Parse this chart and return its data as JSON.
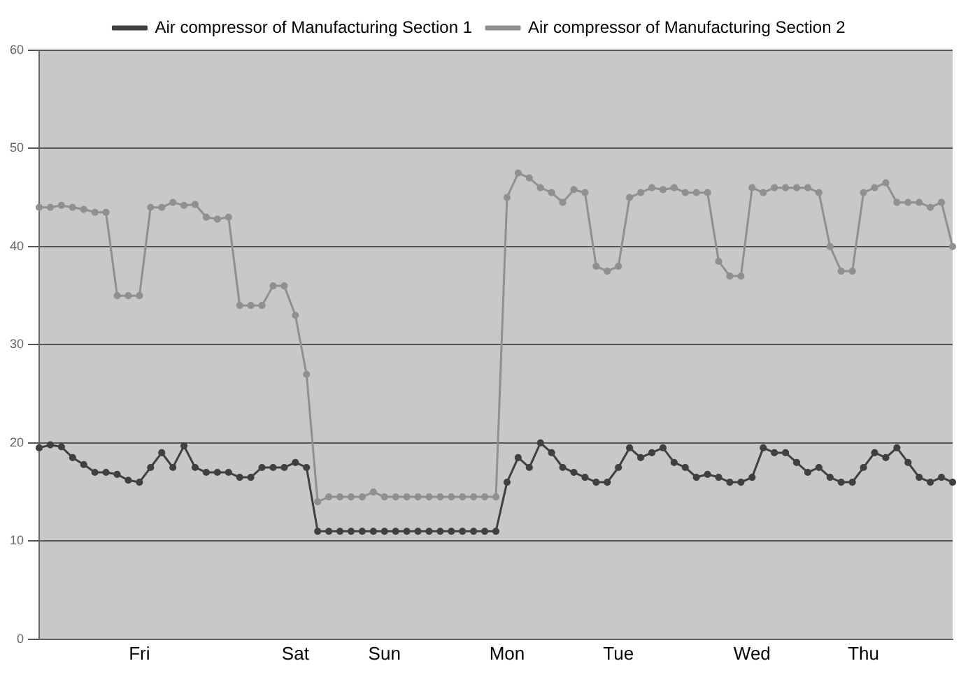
{
  "chart_data": {
    "type": "line",
    "categories": [
      null,
      null,
      null,
      null,
      null,
      null,
      null,
      null,
      null,
      "Fri",
      null,
      null,
      null,
      null,
      null,
      null,
      null,
      null,
      null,
      null,
      null,
      null,
      null,
      "Sat",
      null,
      null,
      null,
      null,
      null,
      null,
      null,
      "Sun",
      null,
      null,
      null,
      null,
      null,
      null,
      null,
      null,
      null,
      null,
      "Mon",
      null,
      null,
      null,
      null,
      null,
      null,
      null,
      null,
      null,
      "Tue",
      null,
      null,
      null,
      null,
      null,
      null,
      null,
      null,
      null,
      null,
      null,
      "Wed",
      null,
      null,
      null,
      null,
      null,
      null,
      null,
      null,
      null,
      "Thu",
      null,
      null,
      null,
      null,
      null,
      null,
      null,
      null
    ],
    "series": [
      {
        "name": "Air compressor of Manufacturing Section 1",
        "color": "#404040",
        "values": [
          19.5,
          19.8,
          19.6,
          18.5,
          17.8,
          17,
          17,
          16.8,
          16.2,
          16,
          17.5,
          19,
          17.5,
          19.7,
          17.5,
          17,
          17,
          17,
          16.5,
          16.5,
          17.5,
          17.5,
          17.5,
          18,
          17.5,
          11,
          11,
          11,
          11,
          11,
          11,
          11,
          11,
          11,
          11,
          11,
          11,
          11,
          11,
          11,
          11,
          11,
          16,
          18.5,
          17.5,
          20,
          19,
          17.5,
          17,
          16.5,
          16,
          16,
          17.5,
          19.5,
          18.5,
          19,
          19.5,
          18,
          17.5,
          16.5,
          16.8,
          16.5,
          16,
          16,
          16.5,
          19.5,
          19,
          19,
          18,
          17,
          17.5,
          16.5,
          16,
          16,
          17.5,
          19,
          18.5,
          19.5,
          18,
          16.5,
          16,
          16.5,
          16
        ]
      },
      {
        "name": "Air compressor of Manufacturing Section 2",
        "color": "#909090",
        "values": [
          44,
          44,
          44.2,
          44,
          43.8,
          43.5,
          43.5,
          35,
          35,
          35,
          44,
          44,
          44.5,
          44.2,
          44.3,
          43,
          42.8,
          43,
          34,
          34,
          34,
          36,
          36,
          33,
          27,
          14,
          14.5,
          14.5,
          14.5,
          14.5,
          15,
          14.5,
          14.5,
          14.5,
          14.5,
          14.5,
          14.5,
          14.5,
          14.5,
          14.5,
          14.5,
          14.5,
          45,
          47.5,
          47,
          46,
          45.5,
          44.5,
          45.8,
          45.5,
          38,
          37.5,
          38,
          45,
          45.5,
          46,
          45.8,
          46,
          45.5,
          45.5,
          45.5,
          38.5,
          37,
          37,
          46,
          45.5,
          46,
          46,
          46,
          46,
          45.5,
          40,
          37.5,
          37.5,
          45.5,
          46,
          46.5,
          44.5,
          44.5,
          44.5,
          44,
          44.5,
          40
        ]
      }
    ],
    "ylim": [
      0,
      60
    ],
    "yticks": [
      0,
      10,
      20,
      30,
      40,
      50,
      60
    ],
    "grid": "y",
    "legend": "top",
    "marker": "circle",
    "line_style": "solid"
  }
}
